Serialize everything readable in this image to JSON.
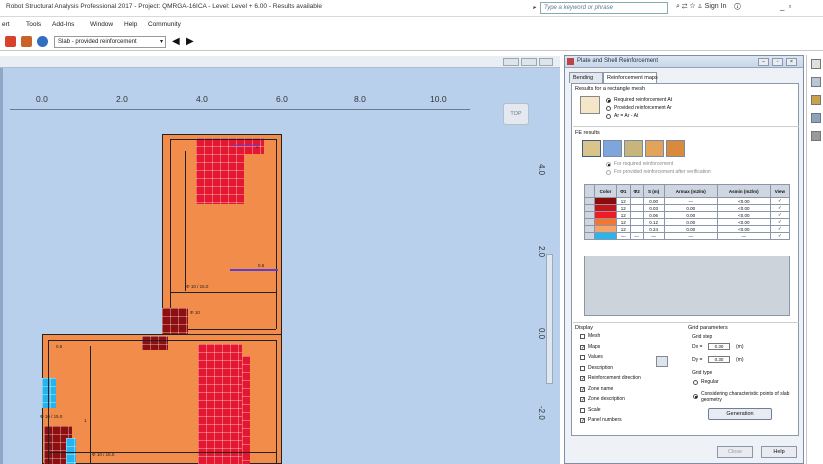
{
  "titlebar": {
    "title": "Robot Structural Analysis Professional 2017 - Project: QMRGA-16ICA - Level: Level + 6.00 - Results available",
    "search_placeholder": "Type a keyword or phrase",
    "sign_in": "Sign In"
  },
  "menu": {
    "items": [
      "ert",
      "Tools",
      "Add-Ins",
      "Window",
      "Help",
      "Community"
    ]
  },
  "toolbar": {
    "view_select": "Slab - provided reinforcement"
  },
  "viewport": {
    "ruler_x": [
      "0.0",
      "2.0",
      "4.0",
      "6.0",
      "8.0",
      "10.0"
    ],
    "ruler_y": [
      "4.0",
      "2.0",
      "0.0",
      "-2.0"
    ],
    "top_cube": "TOP",
    "panel_labels": {
      "p1": "Φ 10 / 15.0",
      "p2": "Φ 10 / 15.0",
      "p3": "Φ 10 / 15.0",
      "p4": "1",
      "p5": "2",
      "p6": "0.5",
      "p7": "Φ 10",
      "p8": "0.5"
    }
  },
  "dialog": {
    "title": "Plate and Shell Reinforcement",
    "tabs": [
      "Bending",
      "Reinforcement maps"
    ],
    "results_label": "Results for a rectangle mesh",
    "results_options": [
      "Required reinforcement At",
      "Provided reinforcement Ar",
      "Ar = Ar - At"
    ],
    "fe_label": "FE results",
    "fe_options": [
      "For required reinforcement",
      "For provided reinforcement after verification"
    ],
    "table": {
      "headers": [
        "Color",
        "Φ1",
        "Φ2",
        "S (m)",
        "Armax (m2/m)",
        "Asmin (m2/m)",
        "View"
      ],
      "rows": [
        {
          "color": "#8b0a0a",
          "d1": "12",
          "d2": "",
          "s": "0.00",
          "armax": "—",
          "asmin": "<0.00",
          "view": "✓"
        },
        {
          "color": "#c7141b",
          "d1": "12",
          "d2": "",
          "s": "0.03",
          "armax": "0.00",
          "asmin": "<0.00",
          "view": "✓"
        },
        {
          "color": "#ee1c25",
          "d1": "12",
          "d2": "",
          "s": "0.06",
          "armax": "0.00",
          "asmin": "<0.00",
          "view": "✓"
        },
        {
          "color": "#f5772f",
          "d1": "12",
          "d2": "",
          "s": "0.12",
          "armax": "0.00",
          "asmin": "<0.00",
          "view": "✓"
        },
        {
          "color": "#f3a46a",
          "d1": "12",
          "d2": "",
          "s": "0.24",
          "armax": "0.00",
          "asmin": "<0.00",
          "view": "✓"
        },
        {
          "color": "#29b6ec",
          "d1": "—",
          "d2": "—",
          "s": "—",
          "armax": "—",
          "asmin": "—",
          "view": "✓"
        }
      ]
    },
    "display": {
      "label": "Display",
      "items": [
        {
          "label": "Mesh",
          "checked": false
        },
        {
          "label": "Maps",
          "checked": true
        },
        {
          "label": "Values",
          "checked": false
        },
        {
          "label": "Description",
          "checked": false
        },
        {
          "label": "Reinforcement direction",
          "checked": true
        },
        {
          "label": "Zone name",
          "checked": true
        },
        {
          "label": "Zone description",
          "checked": true
        },
        {
          "label": "Scale",
          "checked": false
        },
        {
          "label": "Panel numbers",
          "checked": true
        }
      ]
    },
    "grid": {
      "label": "Grid parameters",
      "step_label": "Grid step",
      "dx_label": "Dx =",
      "dx_value": "0.30",
      "dx_unit": "(m)",
      "dy_label": "Dy =",
      "dy_value": "0.30",
      "dy_unit": "(m)",
      "type_label": "Grid type",
      "type_options": [
        "Regular",
        "Considering characteristic points of slab geometry"
      ],
      "generate_button": "Generation"
    },
    "footer": {
      "close_button": "Close",
      "help_button": "Help"
    }
  },
  "colors": {
    "viewport_bg": "#b8d0ec",
    "slab_base": "#f28c4a",
    "zone_red": "#e3172f",
    "zone_dark": "#8e0f10",
    "zone_cyan": "#27b4ec"
  }
}
